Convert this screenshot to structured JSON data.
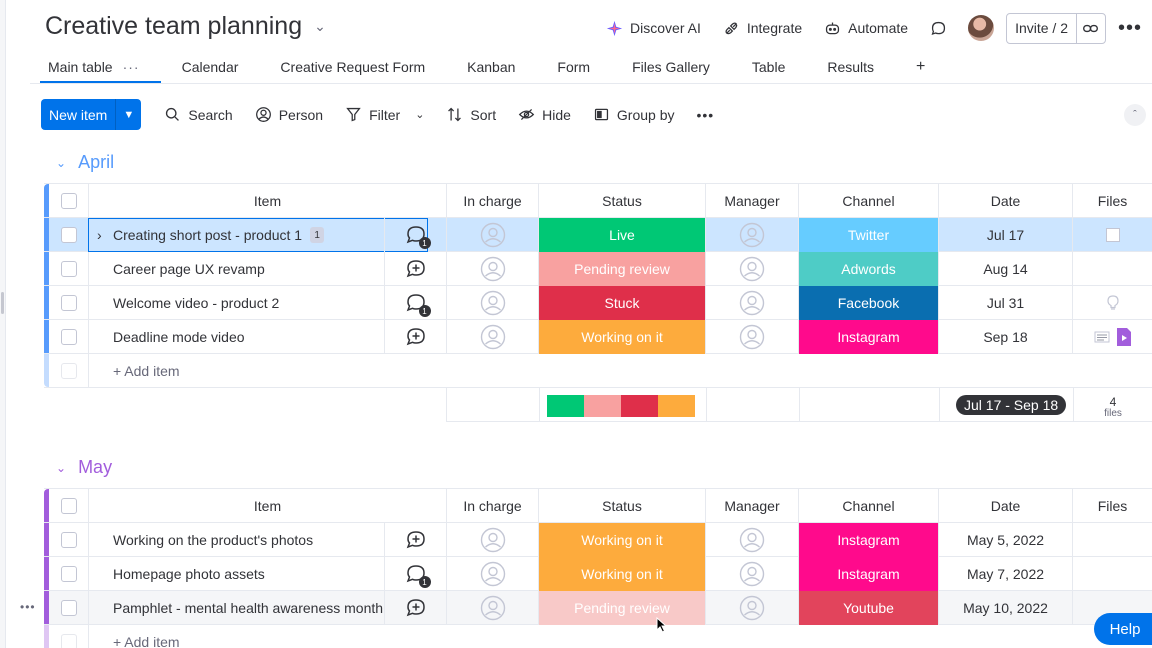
{
  "board": {
    "title": "Creative team planning"
  },
  "header": {
    "discover_ai": "Discover AI",
    "integrate": "Integrate",
    "automate": "Automate",
    "invite": "Invite / 2"
  },
  "tabs": [
    {
      "label": "Main table",
      "active": true
    },
    {
      "label": "Calendar"
    },
    {
      "label": "Creative Request Form"
    },
    {
      "label": "Kanban"
    },
    {
      "label": "Form"
    },
    {
      "label": "Files Gallery"
    },
    {
      "label": "Table"
    },
    {
      "label": "Results"
    },
    {
      "label": "+"
    }
  ],
  "toolbar": {
    "new_item": "New item",
    "search": "Search",
    "person": "Person",
    "filter": "Filter",
    "sort": "Sort",
    "hide": "Hide",
    "group_by": "Group by"
  },
  "columns": {
    "item": "Item",
    "in_charge": "In charge",
    "status": "Status",
    "manager": "Manager",
    "channel": "Channel",
    "date": "Date",
    "files": "Files"
  },
  "colors": {
    "live": "#00c875",
    "pending": "#f8a1a0",
    "stuck": "#df2f4a",
    "working": "#fdab3d",
    "twitter": "#66ccff",
    "adwords": "#4eccc6",
    "facebook": "#0a6eb0",
    "instagram": "#ff0a8c",
    "youtube": "#e2445c",
    "april": "#579bfc",
    "may": "#a25ddc"
  },
  "groups": [
    {
      "name": "April",
      "rows": [
        {
          "item": "Creating short post - product 1",
          "subitems": "1",
          "status": "Live",
          "status_color": "#00c875",
          "channel": "Twitter",
          "channel_color": "#66ccff",
          "date": "Jul 17",
          "updates": "1",
          "selected": true
        },
        {
          "item": "Career page UX revamp",
          "status": "Pending review",
          "status_color": "#f8a1a0",
          "channel": "Adwords",
          "channel_color": "#4eccc6",
          "date": "Aug 14"
        },
        {
          "item": "Welcome video - product 2",
          "status": "Stuck",
          "status_color": "#df2f4a",
          "channel": "Facebook",
          "channel_color": "#0a6eb0",
          "date": "Jul 31",
          "updates": "1"
        },
        {
          "item": "Deadline mode video",
          "status": "Working on it",
          "status_color": "#fdab3d",
          "channel": "Instagram",
          "channel_color": "#ff0a8c",
          "date": "Sep 18"
        }
      ],
      "add_item": "+ Add item",
      "summary": {
        "date_range": "Jul 17 - Sep 18",
        "files_count": "4",
        "files_label": "files"
      }
    },
    {
      "name": "May",
      "rows": [
        {
          "item": "Working on the product's photos",
          "status": "Working on it",
          "status_color": "#fdab3d",
          "channel": "Instagram",
          "channel_color": "#ff0a8c",
          "date": "May 5, 2022"
        },
        {
          "item": "Homepage photo assets",
          "status": "Working on it",
          "status_color": "#fdab3d",
          "channel": "Instagram",
          "channel_color": "#ff0a8c",
          "date": "May 7, 2022",
          "updates": "1"
        },
        {
          "item": "Pamphlet - mental health awareness month",
          "status": "Pending review",
          "status_color": "#f8c9c8",
          "channel": "Youtube",
          "channel_color": "#e2445c",
          "date": "May 10, 2022"
        }
      ],
      "add_item": "+ Add item"
    }
  ],
  "help": "Help"
}
